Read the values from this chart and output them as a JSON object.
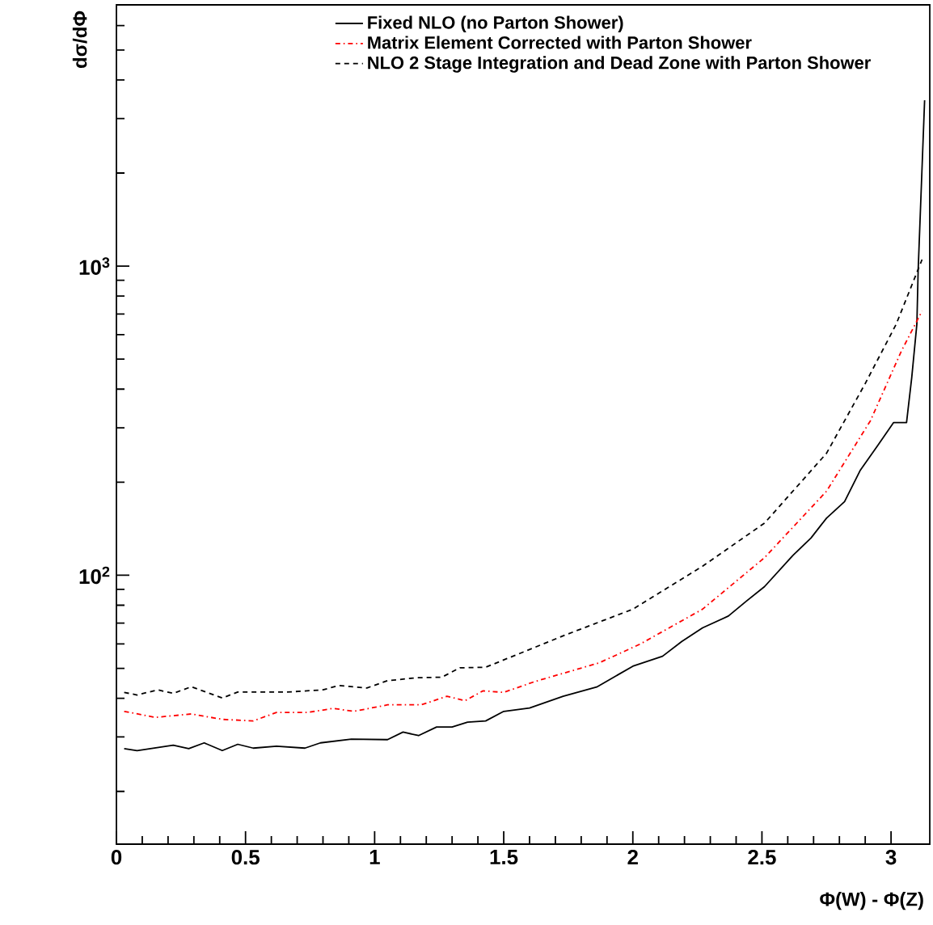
{
  "chart_data": {
    "type": "line",
    "xlabel": "Φ(W) - Φ(Z)",
    "ylabel": "dσ/dΦ",
    "xlim": [
      0,
      3.15
    ],
    "xticks": [
      0,
      0.5,
      1,
      1.5,
      2,
      2.5,
      3
    ],
    "ylim": [
      13.5,
      7000
    ],
    "yticks": [
      {
        "value": 100,
        "label": "10$^{2}$"
      },
      {
        "value": 1000,
        "label": "10$^{3}$"
      }
    ],
    "log": "y",
    "grid": false,
    "legend": "top",
    "marker": "none",
    "series": [
      {
        "name": "Fixed NLO (no Parton Shower)",
        "color": "#000000",
        "line_style": "solid",
        "x": [
          0.03,
          0.08,
          0.22,
          0.28,
          0.34,
          0.41,
          0.47,
          0.53,
          0.62,
          0.73,
          0.79,
          0.91,
          1.05,
          1.11,
          1.17,
          1.24,
          1.3,
          1.36,
          1.43,
          1.5,
          1.6,
          1.73,
          1.86,
          2.0,
          2.115,
          2.19,
          2.27,
          2.37,
          2.44,
          2.51,
          2.62,
          2.69,
          2.75,
          2.82,
          2.88,
          2.95,
          3.01,
          3.06,
          3.08,
          3.1,
          3.105,
          3.13
        ],
        "values": [
          27.5,
          27.1,
          28.2,
          27.5,
          28.7,
          27.1,
          28.4,
          27.6,
          28.0,
          27.6,
          28.7,
          29.5,
          29.4,
          31.1,
          30.3,
          32.3,
          32.3,
          33.5,
          33.8,
          36.3,
          37.2,
          40.6,
          43.5,
          50.8,
          54.7,
          61.1,
          67.6,
          73.8,
          82.5,
          91.9,
          116,
          132,
          153,
          173,
          218,
          264,
          312,
          312,
          435,
          649,
          970,
          3440
        ]
      },
      {
        "name": "Matrix Element Corrected with Parton Shower",
        "color": "#ff0000",
        "line_style": "dashdot",
        "x": [
          0.03,
          0.15,
          0.29,
          0.41,
          0.53,
          0.62,
          0.74,
          0.84,
          0.92,
          1.05,
          1.18,
          1.28,
          1.35,
          1.42,
          1.5,
          1.62,
          1.87,
          2.03,
          2.27,
          2.51,
          2.75,
          2.92,
          3.04,
          3.12
        ],
        "values": [
          36.3,
          34.7,
          35.6,
          34.2,
          33.8,
          36.0,
          36.0,
          37.1,
          36.3,
          38.1,
          38.1,
          40.6,
          39.3,
          42.3,
          41.8,
          45.3,
          52.1,
          60.0,
          77.7,
          114,
          187,
          316,
          531,
          716
        ]
      },
      {
        "name": "NLO 2 Stage Integration and Dead Zone with Parton Shower",
        "color": "#000000",
        "line_style": "dashed",
        "x": [
          0.03,
          0.08,
          0.16,
          0.22,
          0.29,
          0.41,
          0.47,
          0.66,
          0.8,
          0.86,
          0.97,
          1.05,
          1.16,
          1.26,
          1.33,
          1.43,
          1.73,
          2.0,
          2.27,
          2.51,
          2.75,
          2.9,
          3.02,
          3.12
        ],
        "values": [
          41.8,
          41.0,
          42.6,
          41.5,
          43.6,
          40.1,
          41.9,
          41.9,
          42.6,
          44.0,
          43.2,
          45.6,
          46.6,
          46.8,
          50.2,
          50.4,
          63.7,
          77.7,
          107,
          147.5,
          248,
          417,
          649,
          1050
        ]
      }
    ]
  }
}
